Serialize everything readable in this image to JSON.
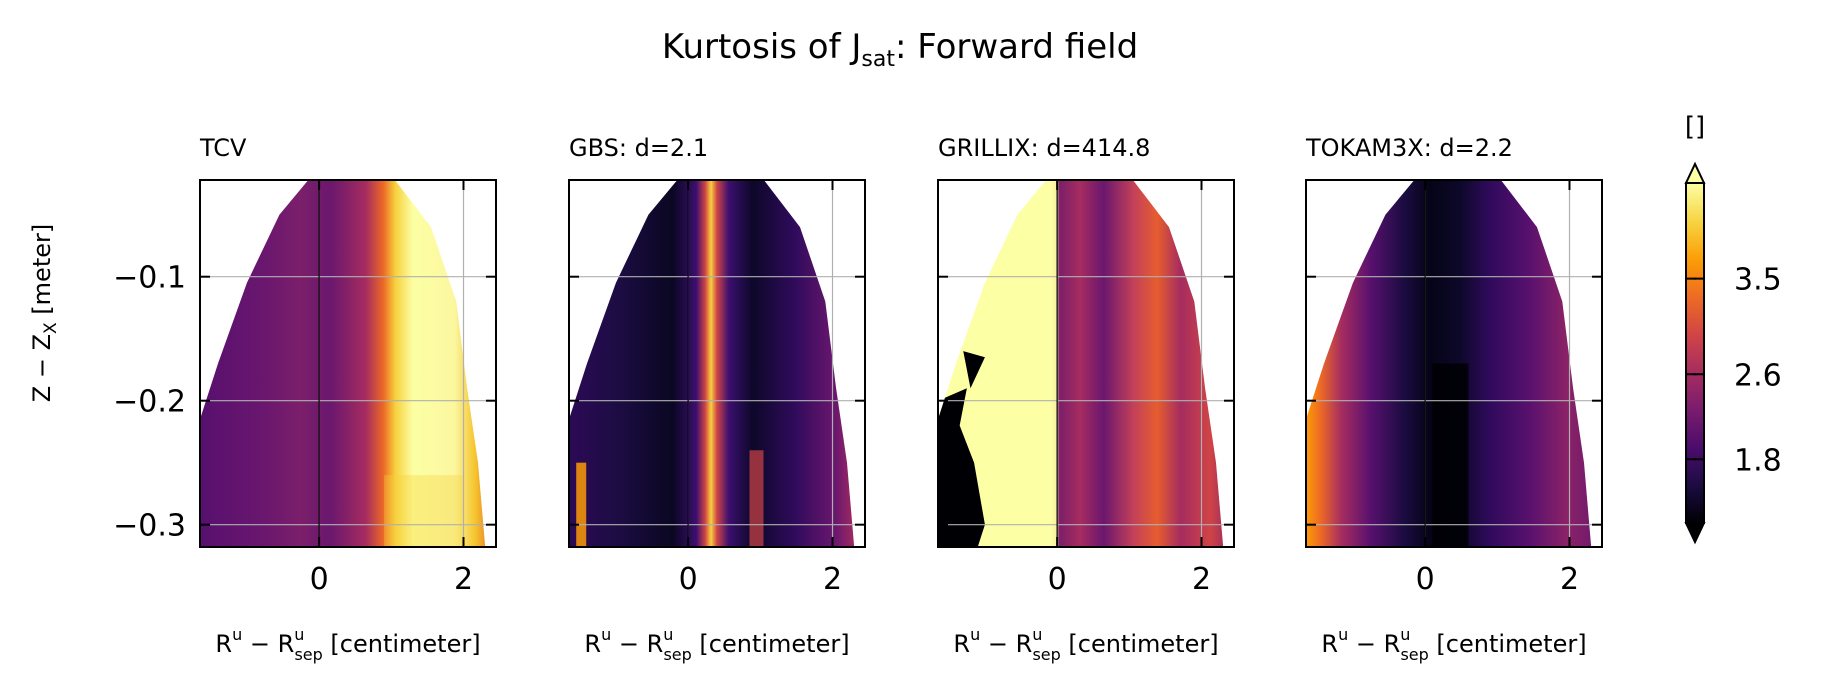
{
  "figure": {
    "title_main": "Kurtosis of J",
    "title_sub": "sat",
    "title_rest": ": Forward field"
  },
  "colorbar": {
    "label": "[]",
    "ticks": [
      {
        "value": 1.8,
        "label": "1.8"
      },
      {
        "value": 2.6,
        "label": "2.6"
      },
      {
        "value": 3.5,
        "label": "3.5"
      }
    ],
    "range": [
      1.2,
      4.4
    ],
    "extend": "both",
    "colormap": "inferno",
    "colors": [
      "#000004",
      "#1b0c41",
      "#4a0c6b",
      "#781c6d",
      "#a52c60",
      "#cf4446",
      "#ed6925",
      "#fb9b06",
      "#f7d13d",
      "#fcffa4"
    ]
  },
  "chart_data": [
    {
      "type": "heatmap",
      "title": "TCV",
      "xlabel": "R^u − R^u_sep [centimeter]",
      "ylabel": "Z − Z_X [meter]",
      "xticks": [
        "0",
        "2"
      ],
      "yticks": [
        "−0.1",
        "−0.2",
        "−0.3"
      ],
      "xlim": [
        -1.65,
        2.45
      ],
      "ylim": [
        -0.318,
        -0.022
      ],
      "grid": true,
      "z_description_values": {
        "near_separatrix": 2.4,
        "far_sol_band_x_1_to_2": 4.2,
        "private_region": 2.2
      }
    },
    {
      "type": "heatmap",
      "title": "GBS: d=2.1",
      "xlabel": "R^u − R^u_sep [centimeter]",
      "ylabel": "",
      "xticks": [
        "0",
        "2"
      ],
      "yticks": [],
      "xlim": [
        -1.65,
        2.45
      ],
      "ylim": [
        -0.318,
        -0.022
      ],
      "grid": true,
      "z_description_values": {
        "main_sol": 1.6,
        "separatrix_stripe_x_0_3": 3.3,
        "far_sol_edge": 2.8
      }
    },
    {
      "type": "heatmap",
      "title": "GRILLIX: d=414.8",
      "xlabel": "R^u − R^u_sep [centimeter]",
      "ylabel": "",
      "xticks": [
        "0",
        "2"
      ],
      "yticks": [],
      "xlim": [
        -1.65,
        2.45
      ],
      "ylim": [
        -0.318,
        -0.022
      ],
      "grid": true,
      "z_description_values": {
        "private_region": 4.4,
        "sol": 2.5,
        "lower_left_pocket": 1.2
      }
    },
    {
      "type": "heatmap",
      "title": "TOKAM3X: d=2.2",
      "xlabel": "R^u − R^u_sep [centimeter]",
      "ylabel": "",
      "xticks": [
        "0",
        "2"
      ],
      "yticks": [],
      "xlim": [
        -1.65,
        2.45
      ],
      "ylim": [
        -0.318,
        -0.022
      ],
      "grid": true,
      "z_description_values": {
        "private_edge": 3.6,
        "near_separatrix": 1.3,
        "sol": 2.0
      }
    }
  ]
}
